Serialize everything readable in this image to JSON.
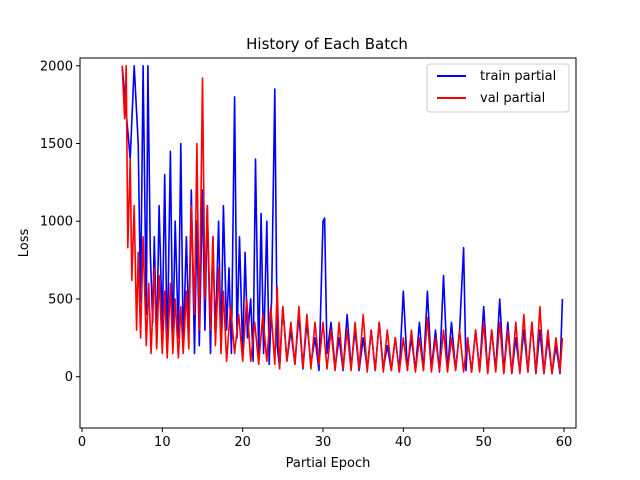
{
  "chart_data": {
    "type": "line",
    "title": "History of Each Batch",
    "xlabel": "Partial Epoch",
    "ylabel": "Loss",
    "xlim": [
      0,
      60
    ],
    "ylim": [
      -330,
      2050
    ],
    "xticks": [
      0,
      10,
      20,
      30,
      40,
      50,
      60
    ],
    "yticks": [
      0,
      500,
      1000,
      1500,
      2000
    ],
    "grid": false,
    "legend_position": "top-right",
    "series": [
      {
        "name": "train partial",
        "color": "#0000ff",
        "x": [
          5.0,
          5.5,
          6.0,
          6.5,
          7.0,
          7.3,
          7.6,
          8.0,
          8.2,
          8.5,
          8.8,
          9.0,
          9.3,
          9.6,
          10.0,
          10.3,
          10.6,
          11.0,
          11.3,
          11.6,
          12.0,
          12.3,
          12.6,
          13.0,
          13.3,
          13.6,
          14.0,
          14.3,
          14.6,
          15.0,
          15.3,
          15.6,
          16.0,
          16.3,
          16.6,
          17.0,
          17.3,
          17.6,
          18.0,
          18.3,
          18.6,
          19.0,
          19.3,
          19.6,
          20.0,
          20.3,
          20.6,
          21.0,
          21.3,
          21.6,
          22.0,
          22.3,
          22.6,
          23.0,
          23.3,
          23.6,
          24.0,
          24.3,
          24.6,
          25.0,
          25.5,
          26.0,
          26.5,
          27.0,
          27.5,
          28.0,
          28.5,
          29.0,
          29.5,
          30.0,
          30.2,
          30.5,
          31.0,
          31.5,
          32.0,
          32.5,
          33.0,
          33.5,
          34.0,
          34.5,
          35.0,
          35.5,
          36.0,
          36.5,
          37.0,
          37.5,
          38.0,
          38.5,
          39.0,
          39.5,
          40.0,
          40.5,
          41.0,
          41.5,
          42.0,
          42.5,
          43.0,
          43.5,
          44.0,
          44.5,
          45.0,
          45.5,
          46.0,
          46.5,
          47.0,
          47.5,
          47.8,
          48.0,
          48.5,
          49.0,
          49.5,
          50.0,
          50.5,
          51.0,
          51.5,
          52.0,
          52.5,
          53.0,
          53.5,
          54.0,
          54.5,
          55.0,
          55.5,
          56.0,
          56.5,
          57.0,
          57.5,
          58.0,
          58.5,
          59.0,
          59.5,
          59.8
        ],
        "y": [
          2000,
          1700,
          1400,
          2000,
          1500,
          480,
          2000,
          400,
          2000,
          800,
          350,
          900,
          200,
          1100,
          300,
          1300,
          150,
          1450,
          200,
          1000,
          250,
          1500,
          180,
          900,
          300,
          1200,
          150,
          1000,
          200,
          1200,
          300,
          1100,
          150,
          900,
          250,
          1000,
          200,
          1100,
          300,
          700,
          150,
          1800,
          250,
          900,
          150,
          800,
          250,
          500,
          100,
          1400,
          120,
          1050,
          150,
          1000,
          80,
          500,
          1850,
          200,
          60,
          450,
          100,
          300,
          80,
          400,
          50,
          350,
          80,
          250,
          40,
          1000,
          1020,
          150,
          350,
          60,
          250,
          40,
          400,
          60,
          300,
          40,
          250,
          50,
          300,
          40,
          350,
          50,
          200,
          40,
          250,
          30,
          550,
          50,
          250,
          40,
          350,
          40,
          550,
          50,
          300,
          30,
          650,
          40,
          350,
          40,
          300,
          830,
          40,
          250,
          30,
          300,
          40,
          450,
          30,
          300,
          40,
          500,
          30,
          350,
          20,
          250,
          30,
          300,
          30,
          350,
          20,
          300,
          20,
          250,
          20,
          200,
          20,
          500
        ]
      },
      {
        "name": "val partial",
        "color": "#ff0000",
        "x": [
          5.0,
          5.3,
          5.5,
          5.7,
          6.0,
          6.2,
          6.5,
          6.8,
          7.0,
          7.3,
          7.6,
          8.0,
          8.3,
          8.6,
          9.0,
          9.3,
          9.6,
          10.0,
          10.3,
          10.6,
          11.0,
          11.3,
          11.6,
          12.0,
          12.3,
          12.6,
          13.0,
          13.3,
          13.6,
          14.0,
          14.3,
          14.6,
          15.0,
          15.3,
          15.6,
          16.0,
          16.3,
          16.6,
          17.0,
          17.3,
          17.6,
          18.0,
          18.5,
          19.0,
          19.5,
          20.0,
          20.5,
          21.0,
          21.5,
          22.0,
          22.5,
          23.0,
          23.5,
          24.0,
          24.3,
          24.6,
          25.0,
          25.5,
          26.0,
          26.5,
          27.0,
          27.5,
          28.0,
          28.5,
          29.0,
          29.5,
          30.0,
          30.5,
          31.0,
          31.5,
          32.0,
          32.5,
          33.0,
          33.5,
          34.0,
          34.5,
          35.0,
          35.5,
          36.0,
          36.5,
          37.0,
          37.5,
          38.0,
          38.5,
          39.0,
          39.5,
          40.0,
          40.5,
          41.0,
          41.5,
          42.0,
          42.5,
          43.0,
          43.5,
          44.0,
          44.5,
          45.0,
          45.5,
          46.0,
          46.5,
          47.0,
          47.5,
          48.0,
          48.5,
          49.0,
          49.5,
          50.0,
          50.5,
          51.0,
          51.5,
          52.0,
          52.5,
          53.0,
          53.5,
          54.0,
          54.5,
          55.0,
          55.5,
          56.0,
          56.5,
          57.0,
          57.5,
          58.0,
          58.5,
          59.0,
          59.5,
          59.8
        ],
        "y": [
          2000,
          1660,
          2000,
          830,
          1400,
          620,
          1100,
          300,
          800,
          250,
          900,
          200,
          600,
          150,
          700,
          180,
          650,
          150,
          550,
          120,
          600,
          150,
          500,
          120,
          450,
          150,
          550,
          180,
          1100,
          400,
          1500,
          300,
          1920,
          500,
          1100,
          300,
          900,
          200,
          700,
          150,
          550,
          100,
          450,
          150,
          400,
          100,
          500,
          100,
          350,
          80,
          400,
          100,
          450,
          80,
          580,
          50,
          450,
          100,
          350,
          80,
          450,
          60,
          400,
          50,
          350,
          80,
          350,
          50,
          300,
          40,
          350,
          50,
          300,
          40,
          350,
          50,
          400,
          30,
          300,
          40,
          350,
          30,
          300,
          40,
          250,
          30,
          250,
          40,
          300,
          30,
          250,
          40,
          380,
          30,
          250,
          40,
          300,
          30,
          250,
          40,
          300,
          30,
          250,
          30,
          300,
          30,
          350,
          20,
          300,
          30,
          350,
          20,
          300,
          20,
          350,
          20,
          400,
          30,
          350,
          20,
          450,
          20,
          300,
          20,
          250,
          30,
          250
        ]
      }
    ]
  }
}
